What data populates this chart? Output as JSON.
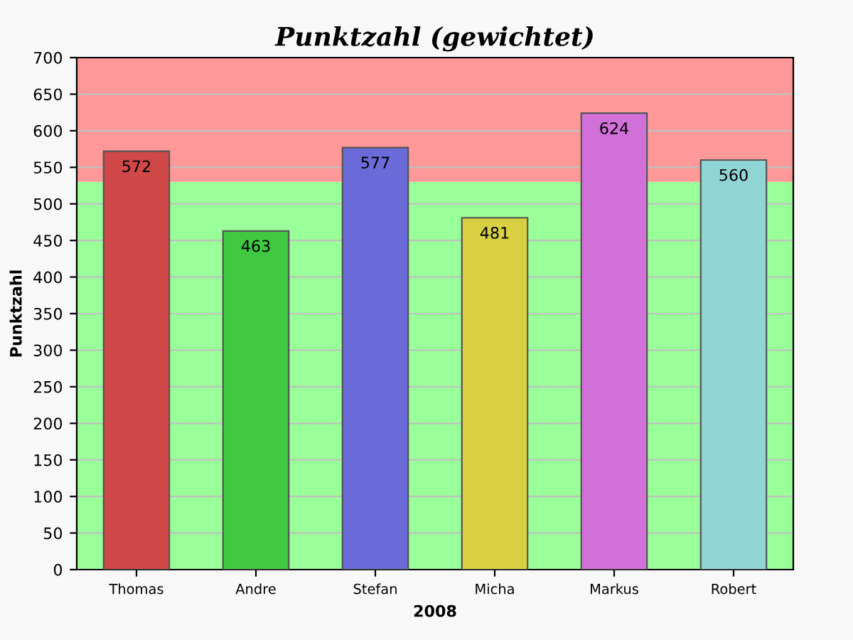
{
  "chart_data": {
    "type": "bar",
    "title": "Punktzahl (gewichtet)",
    "xlabel": "2008",
    "ylabel": "Punktzahl",
    "categories": [
      "Thomas",
      "Andre",
      "Stefan",
      "Micha",
      "Markus",
      "Robert"
    ],
    "values": [
      572,
      463,
      577,
      481,
      624,
      560
    ],
    "colors": [
      "#d04848",
      "#40c840",
      "#6a6ad8",
      "#d8d040",
      "#d070d8",
      "#90d4d4"
    ],
    "data_labels": true,
    "ylim": [
      0,
      700
    ],
    "yticks": [
      0,
      50,
      100,
      150,
      200,
      250,
      300,
      350,
      400,
      450,
      500,
      550,
      600,
      650,
      700
    ],
    "grid": "y",
    "bands": [
      {
        "axis": "y",
        "from": 0,
        "to": 530,
        "color": "#99ff99"
      },
      {
        "axis": "y",
        "from": 530,
        "to": 700,
        "color": "#ff9999"
      }
    ]
  }
}
